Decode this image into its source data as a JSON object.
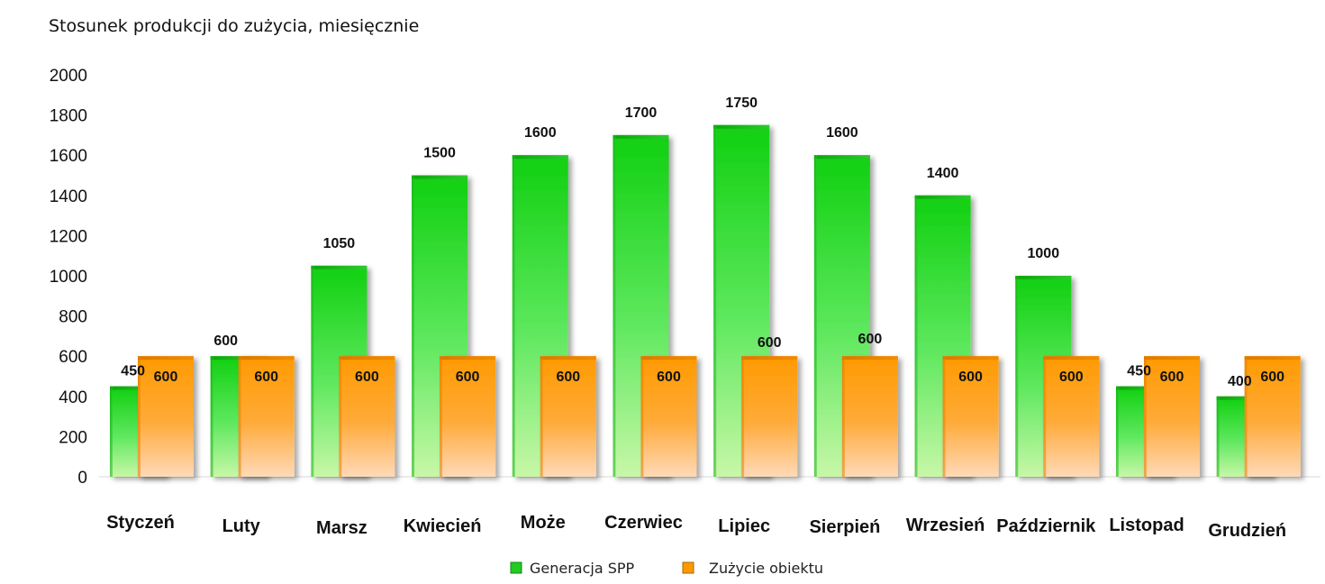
{
  "chart_data": {
    "type": "bar",
    "title": "Stosunek produkcji do zużycia, miesięcznie",
    "xlabel": "",
    "ylabel": "",
    "ylim": [
      0,
      2000
    ],
    "yticks": [
      0,
      200,
      400,
      600,
      800,
      1000,
      1200,
      1400,
      1600,
      1800,
      2000
    ],
    "categories": [
      "Styczeń",
      "Luty",
      "Marsz",
      "Kwiecień",
      "Może",
      "Czerwiec",
      "Lipiec",
      "Sierpień",
      "Wrzesień",
      "Październik",
      "Listopad",
      "Grudzień"
    ],
    "series": [
      {
        "name": "Generacja SPP",
        "color": "#22dd22",
        "values": [
          450,
          600,
          1050,
          1500,
          1600,
          1700,
          1750,
          1600,
          1400,
          1000,
          450,
          400
        ]
      },
      {
        "name": "Zużycie obiektu",
        "color": "#ff9900",
        "values": [
          600,
          600,
          600,
          600,
          600,
          600,
          600,
          600,
          600,
          600,
          600,
          600
        ]
      }
    ],
    "grid": false,
    "legend": "bottom-center"
  }
}
